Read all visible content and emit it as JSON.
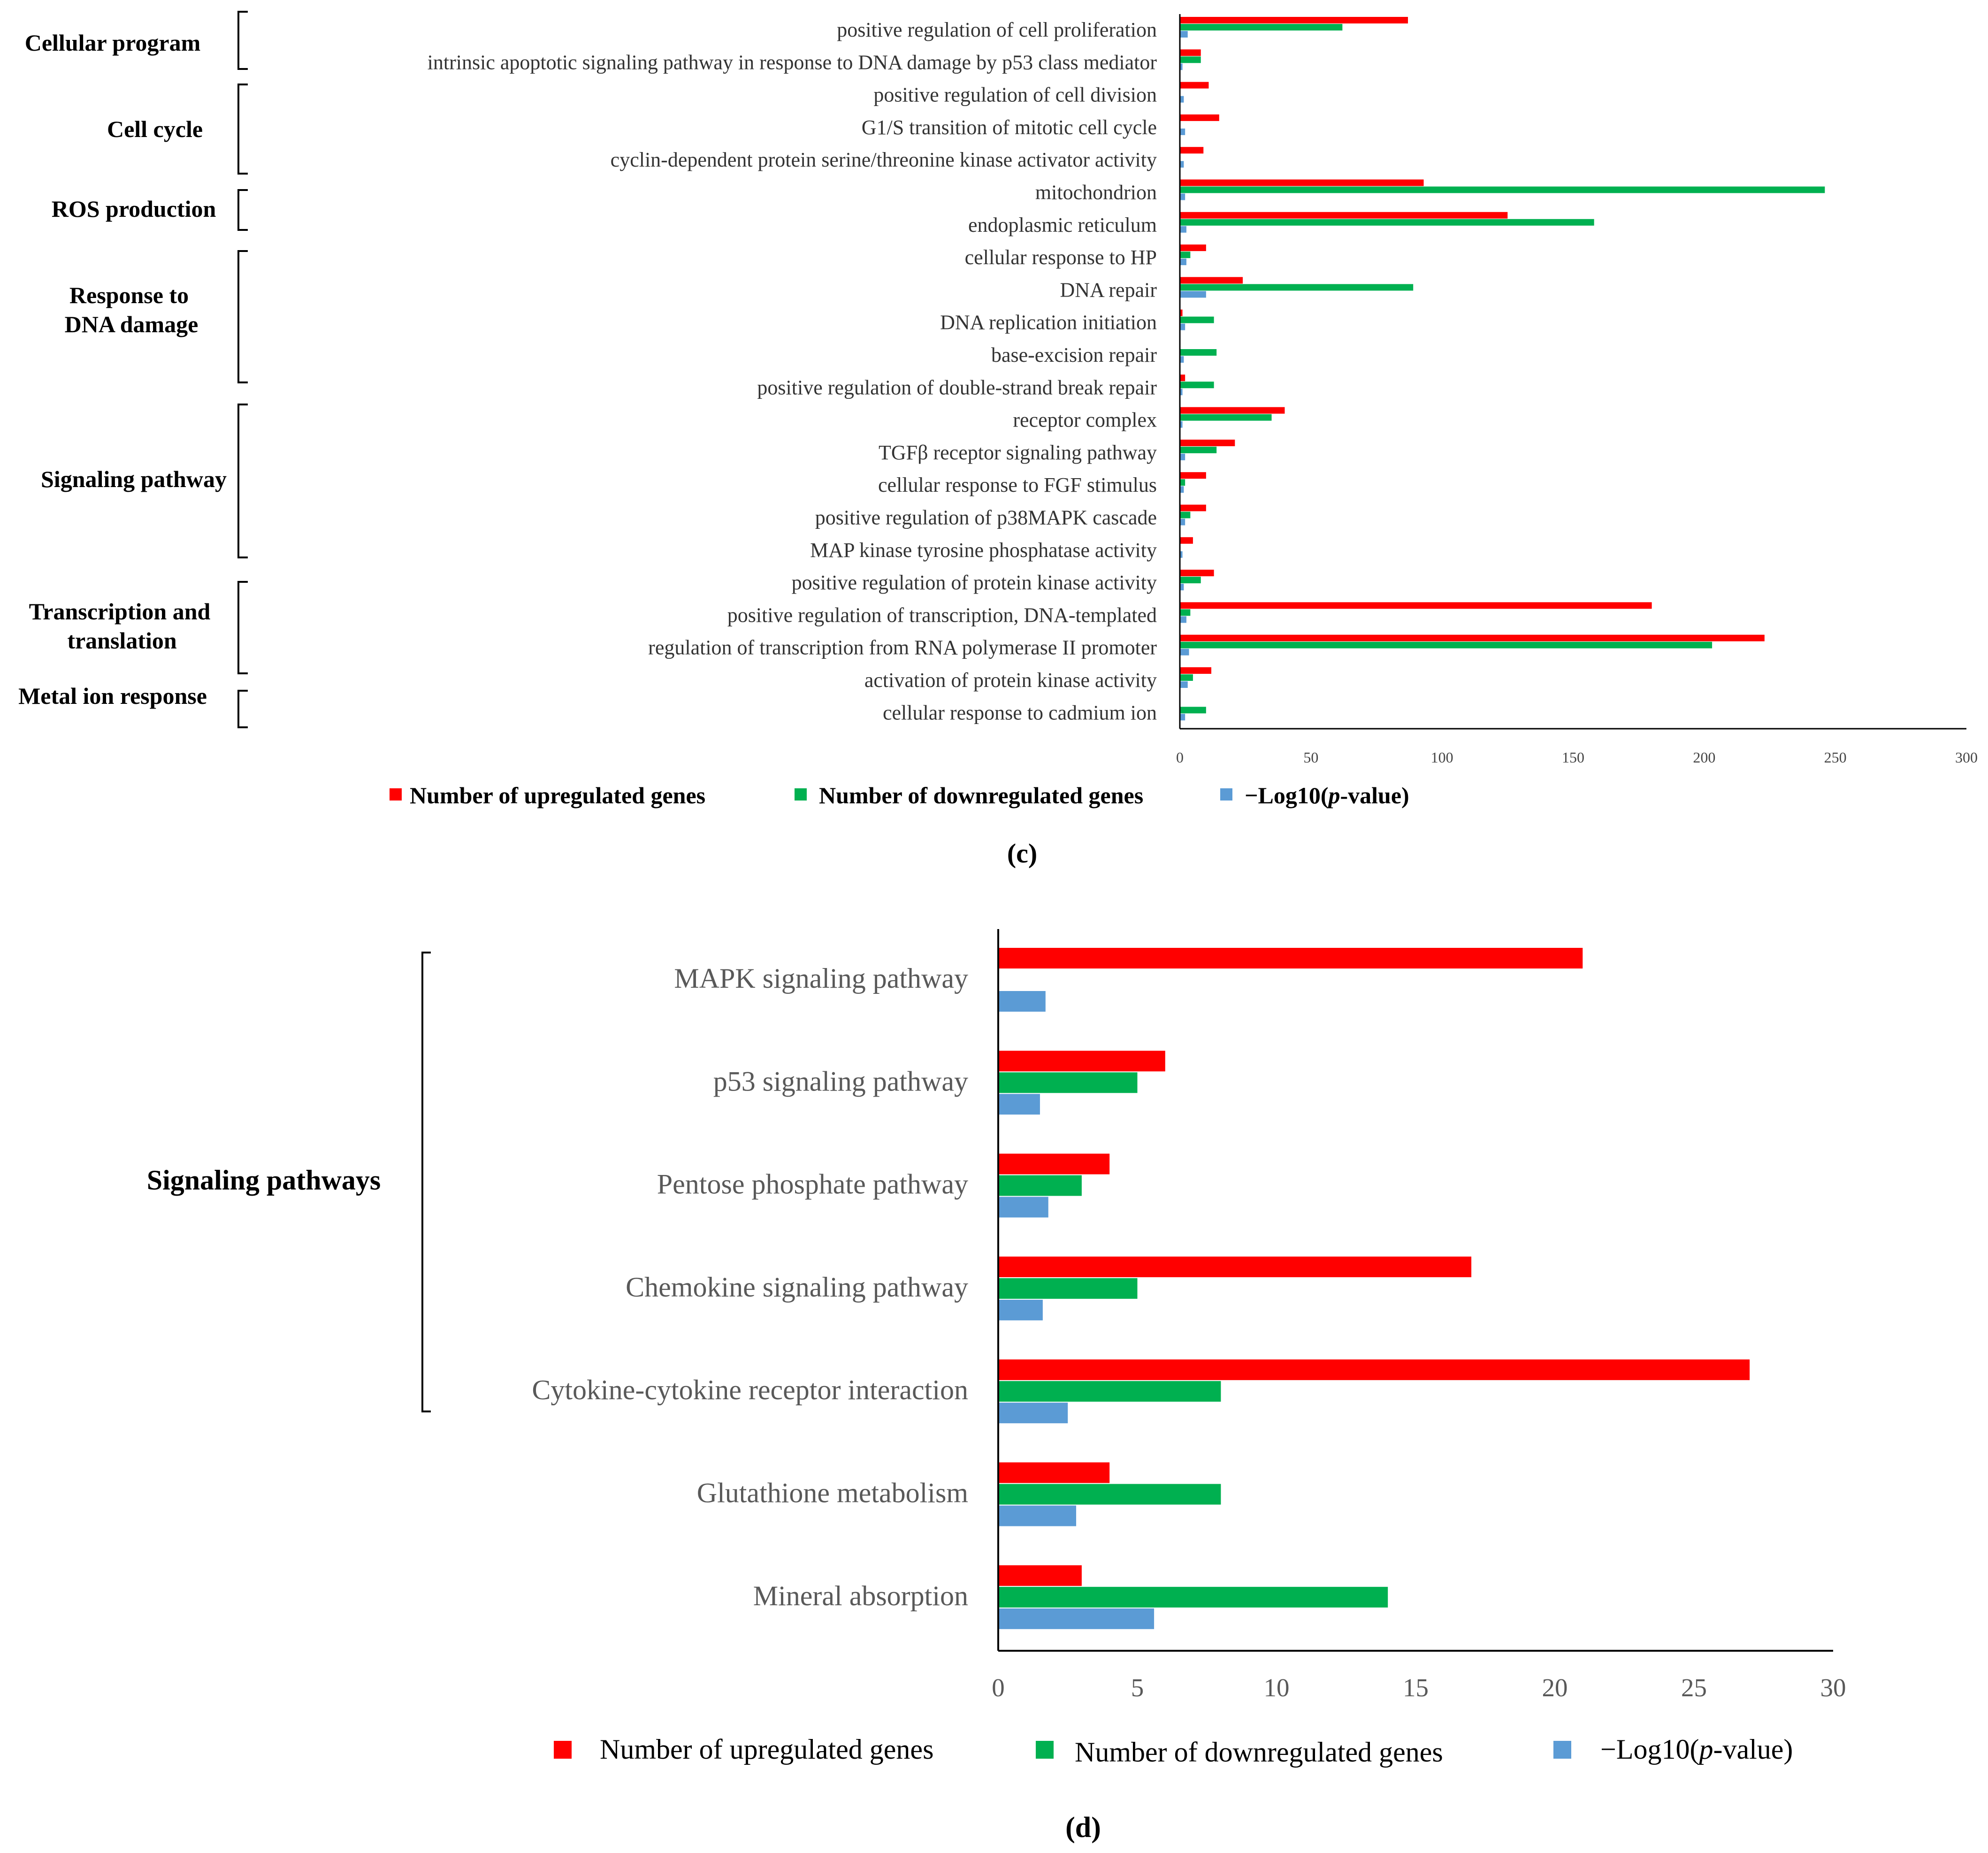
{
  "colors": {
    "up": "#ff0000",
    "down": "#00b050",
    "pval": "#5b9bd5",
    "axis": "#000000",
    "category_label_c": "#333333",
    "category_label_d": "#595959"
  },
  "chart_data": [
    {
      "panel": "(c)",
      "type": "bar",
      "orientation": "horizontal",
      "categories": [
        "positive regulation of cell proliferation",
        "intrinsic apoptotic signaling pathway in response to DNA damage by p53 class mediator",
        "positive regulation of cell division",
        "G1/S transition of mitotic cell cycle",
        "cyclin-dependent protein serine/threonine kinase activator activity",
        "mitochondrion",
        "endoplasmic reticulum",
        "cellular response to HP",
        "DNA repair",
        "DNA replication initiation",
        "base-excision repair",
        "positive regulation of double-strand break repair",
        "receptor complex",
        "TGFβ receptor signaling pathway",
        "cellular response to FGF stimulus",
        "positive regulation of p38MAPK cascade",
        "MAP kinase tyrosine phosphatase activity",
        "positive regulation of protein kinase activity",
        "positive regulation of transcription, DNA-templated",
        "regulation of transcription from RNA polymerase II promoter",
        "activation of protein kinase activity",
        "cellular response to cadmium ion"
      ],
      "series": [
        {
          "name": "Number of upregulated genes",
          "values": [
            87,
            8,
            11,
            15,
            9,
            93,
            125,
            10,
            24,
            1,
            0,
            2,
            40,
            21,
            10,
            10,
            5,
            13,
            180,
            223,
            12,
            0
          ]
        },
        {
          "name": "Number of downregulated genes",
          "values": [
            62,
            8,
            0,
            0,
            0,
            246,
            158,
            4,
            89,
            13,
            14,
            13,
            35,
            14,
            2,
            4,
            0,
            8,
            4,
            203,
            5,
            10
          ]
        },
        {
          "name": "−Log10(p-value)",
          "values": [
            3,
            1,
            1.5,
            2,
            1.5,
            2,
            2.5,
            2.5,
            10,
            2,
            1.5,
            1,
            1,
            2,
            1.5,
            2,
            1,
            1.5,
            2.5,
            3.5,
            3,
            2
          ]
        }
      ],
      "groups": [
        {
          "label": "Cellular program",
          "items": [
            0,
            1
          ]
        },
        {
          "label": "Cell cycle",
          "items": [
            2,
            4
          ]
        },
        {
          "label": "ROS production",
          "items": [
            5,
            6
          ]
        },
        {
          "label": "Response to DNA damage",
          "items": [
            7,
            11
          ]
        },
        {
          "label": "Signaling pathway",
          "items": [
            12,
            16
          ]
        },
        {
          "label": "Transcription and translation",
          "items": [
            17,
            19
          ]
        },
        {
          "label": "Metal ion response",
          "items": [
            20,
            21
          ]
        }
      ],
      "xticks": [
        "0",
        "50",
        "100",
        "150",
        "200",
        "250",
        "300"
      ],
      "xlim": [
        0,
        300
      ],
      "legend_position": "bottom",
      "grid": false
    },
    {
      "panel": "(d)",
      "type": "bar",
      "orientation": "horizontal",
      "categories": [
        "MAPK signaling pathway",
        "p53 signaling pathway",
        "Pentose phosphate pathway",
        "Chemokine signaling pathway",
        "Cytokine-cytokine receptor interaction",
        "Glutathione metabolism",
        "Mineral absorption"
      ],
      "series": [
        {
          "name": "Number of upregulated genes",
          "values": [
            21,
            6,
            4,
            17,
            27,
            4,
            3
          ]
        },
        {
          "name": "Number of downregulated genes",
          "values": [
            0,
            5,
            3,
            5,
            8,
            8,
            14
          ]
        },
        {
          "name": "−Log10(p-value)",
          "values": [
            1.7,
            1.5,
            1.8,
            1.6,
            2.5,
            2.8,
            5.6
          ]
        }
      ],
      "groups": [
        {
          "label": "Signaling pathways",
          "items": [
            0,
            4
          ]
        }
      ],
      "xticks": [
        "0",
        "5",
        "10",
        "15",
        "20",
        "25",
        "30"
      ],
      "xlim": [
        0,
        30
      ],
      "legend_position": "bottom",
      "grid": false
    }
  ]
}
